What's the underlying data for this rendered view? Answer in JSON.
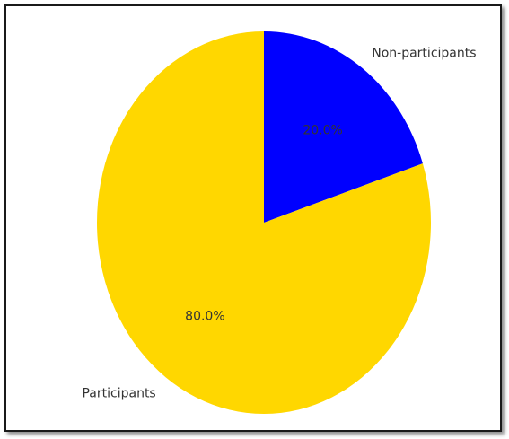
{
  "chart_data": {
    "type": "pie",
    "title": "",
    "slices": [
      {
        "label": "Non-participants",
        "value": 20.0,
        "pct_label": "20.0%",
        "color": "#0000ff"
      },
      {
        "label": "Participants",
        "value": 80.0,
        "pct_label": "80.0%",
        "color": "#ffd700"
      }
    ],
    "start_angle_deg": 90,
    "direction": "clockwise",
    "legend": "none"
  }
}
